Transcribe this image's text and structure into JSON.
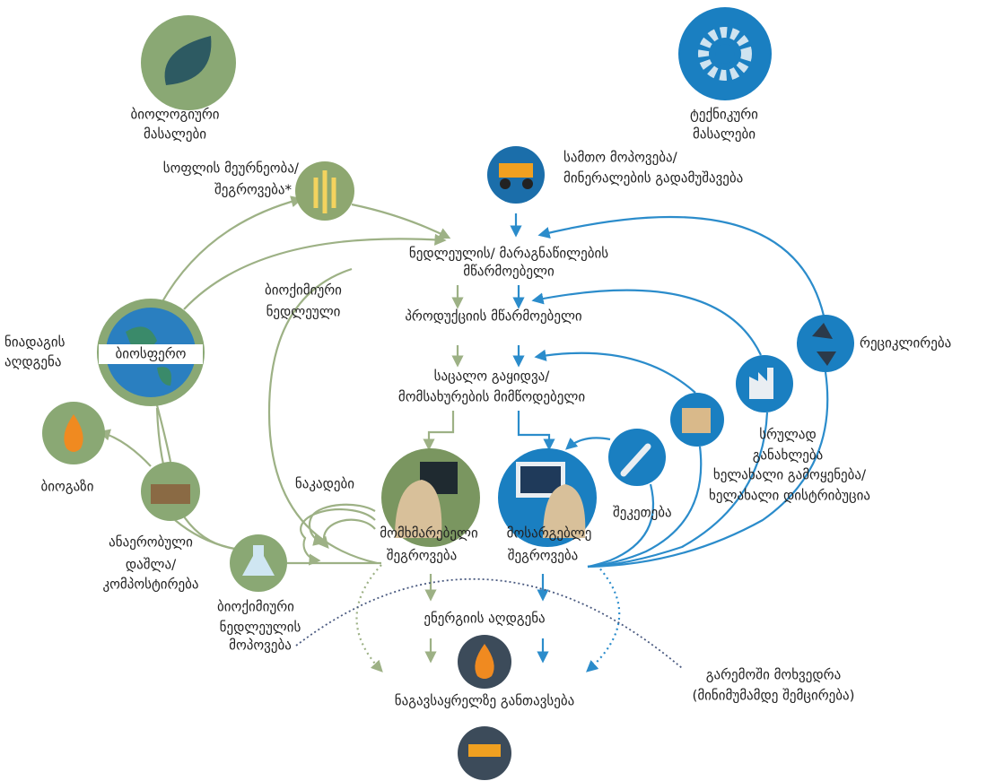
{
  "labels": {
    "biological_materials": [
      "ბიოლოგიური",
      "მასალები"
    ],
    "technical_materials": [
      "ტექნიკური",
      "მასალები"
    ],
    "farming_collection": [
      "სოფლის მეურნეობა/",
      "შეგროვება*"
    ],
    "mining": [
      "სამთო მოპოვება/",
      "მინერალების გადამუშავება"
    ],
    "parts_manufacturer": [
      "ნედლეულის/ მარაგნაწილების",
      "მწარმოებელი"
    ],
    "biochemical_feedstock": [
      "ბიოქიმიური",
      "ნედლეული"
    ],
    "product_manufacturer": [
      "პროდუქციის მწარმოებელი"
    ],
    "soil_restoration": [
      "ნიადაგის",
      "აღდგენა"
    ],
    "biosphere": [
      "ბიოსფერო"
    ],
    "recycle": [
      "რეციკლირება"
    ],
    "retail": [
      "საცალო გაყიდვა/",
      "მომსახურების მიმწოდებელი"
    ],
    "biogas": [
      "ბიოგაზი"
    ],
    "cascades": [
      "ნაკადები"
    ],
    "refurbish": [
      "სრულად",
      "განახლება"
    ],
    "reuse": [
      "ხელახალი გამოყენება/",
      "ხელახალი დისტრიბუცია"
    ],
    "maintenance": [
      "შეკეთება"
    ],
    "anaerobic": [
      "ანაერობული",
      "დაშლა/",
      "კომპოსტირება"
    ],
    "consumer": [
      "მომხმარებელი",
      "შეგროვება"
    ],
    "user": [
      "მოსარგებლე",
      "შეგროვება"
    ],
    "extraction": [
      "ბიოქიმიური",
      "ნედლეულის",
      "მოპოვება"
    ],
    "energy_recovery": [
      "ენერგიის აღდგენა"
    ],
    "leakage": [
      "გარემოში მოხვედრა",
      "(მინიმუმამდე შემცირება)"
    ],
    "landfill": [
      "ნაგავსაყრელზე განთავსება"
    ]
  }
}
